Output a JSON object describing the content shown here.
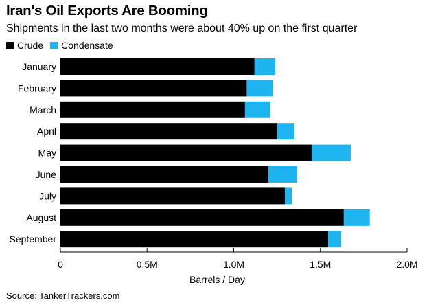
{
  "title": "Iran's Oil Exports Are Booming",
  "subtitle": "Shipments in the last two months were about 40% up on the first quarter",
  "source": "Source: TankerTrackers.com",
  "colors": {
    "crude": "#000000",
    "condensate": "#1eb4f0",
    "grid": "#cfcfcf",
    "axis": "#000000"
  },
  "chart_data": {
    "type": "bar",
    "orientation": "horizontal",
    "stacked": true,
    "title": "Iran's Oil Exports Are Booming",
    "subtitle": "Shipments in the last two months were about 40% up on the first quarter",
    "xlabel": "Barrels / Day",
    "ylabel": "",
    "xlim": [
      0,
      2000000
    ],
    "xticks": [
      0,
      500000,
      1000000,
      1500000,
      2000000
    ],
    "xtick_labels": [
      "0",
      "0.5M",
      "1.0M",
      "1.5M",
      "2.0M"
    ],
    "legend_position": "top-left",
    "grid": false,
    "categories": [
      "January",
      "February",
      "March",
      "April",
      "May",
      "June",
      "July",
      "August",
      "September"
    ],
    "series": [
      {
        "name": "Crude",
        "color": "#000000",
        "values": [
          1120000,
          1075000,
          1065000,
          1250000,
          1450000,
          1200000,
          1295000,
          1635000,
          1545000
        ]
      },
      {
        "name": "Condensate",
        "color": "#1eb4f0",
        "values": [
          120000,
          150000,
          145000,
          100000,
          225000,
          165000,
          40000,
          150000,
          75000
        ]
      }
    ]
  }
}
